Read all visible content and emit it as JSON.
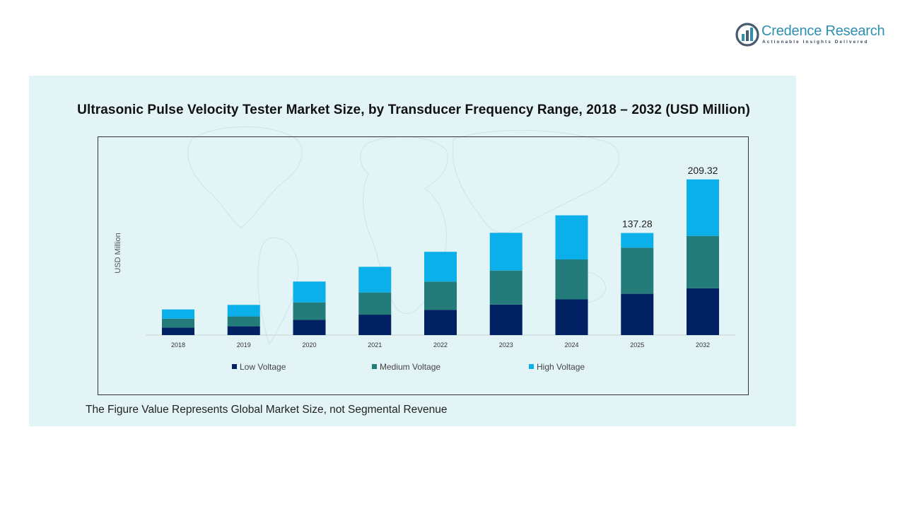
{
  "brand": {
    "name": "Credence Research",
    "tagline": "Actionable Insights Delivered"
  },
  "colors": {
    "low": "#022163",
    "medium": "#237b7a",
    "high": "#0bb0ea",
    "panel": "#e3f4f6",
    "brand": "#2e8fb0"
  },
  "footnote": "The Figure Value Represents Global Market Size, not Segmental Revenue",
  "chart_data": {
    "type": "bar",
    "stacked": true,
    "title": "Ultrasonic Pulse Velocity Tester Market Size, by Transducer Frequency Range, 2018 – 2032 (USD Million)",
    "xlabel": "",
    "ylabel": "USD Million",
    "categories": [
      "2018",
      "2019",
      "2020",
      "2021",
      "2022",
      "2023",
      "2024",
      "2025",
      "2032"
    ],
    "series": [
      {
        "name": "Low Voltage",
        "values": [
          10.2,
          11.8,
          20.5,
          27.5,
          34.0,
          41.0,
          48.0,
          55.5,
          63.0
        ]
      },
      {
        "name": "Medium Voltage",
        "values": [
          11.8,
          13.3,
          23.5,
          29.8,
          38.0,
          45.8,
          53.7,
          62.0,
          70.3
        ]
      },
      {
        "name": "High Voltage",
        "values": [
          12.5,
          15.5,
          28.0,
          34.5,
          40.0,
          50.7,
          59.3,
          19.78,
          76.02
        ]
      }
    ],
    "data_labels": [
      {
        "category": "2025",
        "text": "137.28"
      },
      {
        "category": "2032",
        "text": "209.32"
      }
    ],
    "ylim": [
      0,
      230
    ],
    "grid": false,
    "legend": "bottom"
  }
}
